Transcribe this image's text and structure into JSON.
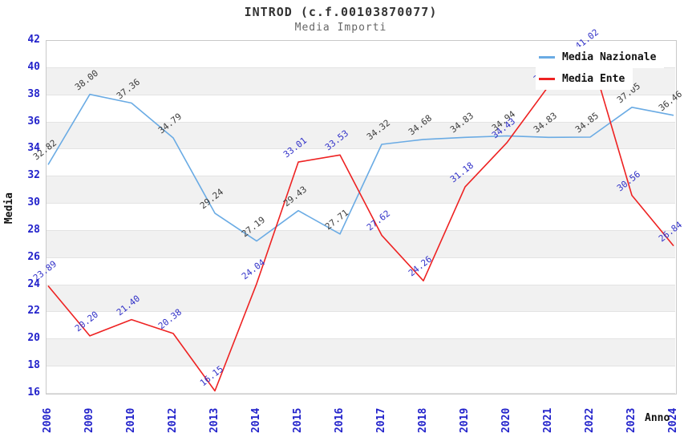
{
  "chart_data": {
    "type": "line",
    "title": "INTROD (c.f.00103870077)",
    "subtitle": "Media Importi",
    "xlabel": "Anno",
    "ylabel": "Media",
    "ylim": [
      16,
      42
    ],
    "ytick_step": 2,
    "grid": "horizontal gridlines with alternating gray bands",
    "legend_position": "top-right inside plot, opaque white",
    "categories": [
      "2006",
      "2009",
      "2010",
      "2012",
      "2013",
      "2014",
      "2015",
      "2016",
      "2017",
      "2018",
      "2019",
      "2020",
      "2021",
      "2022",
      "2023",
      "2024"
    ],
    "series": [
      {
        "name": "Media Nazionale",
        "color": "#6aabe4",
        "label_color": "#3c3c3c",
        "values": [
          32.82,
          38.0,
          37.36,
          34.79,
          29.24,
          27.19,
          29.43,
          27.71,
          34.32,
          34.68,
          34.83,
          34.94,
          34.83,
          34.85,
          37.05,
          36.46
        ]
      },
      {
        "name": "Media Ente",
        "color": "#ee2222",
        "label_color": "#3232c8",
        "values": [
          23.89,
          20.2,
          21.4,
          20.38,
          16.15,
          24.04,
          33.01,
          33.53,
          27.62,
          24.26,
          31.18,
          34.43,
          38.6,
          41.02,
          30.56,
          26.84
        ],
        "estimated_indices": [
          12,
          13
        ],
        "label_notes": "2021 label hidden behind legend; 2022 label clipped at plot top"
      }
    ],
    "colors": {
      "axis_tick_labels": "#2323cb",
      "band": "#f1f1f1",
      "gridline": "#e3e3e3",
      "plot_border": "#c9c9c9",
      "title": "#333333",
      "subtitle": "#666666",
      "axis_titles": "#111111",
      "legend_text": "#111111",
      "background": "#ffffff"
    }
  }
}
